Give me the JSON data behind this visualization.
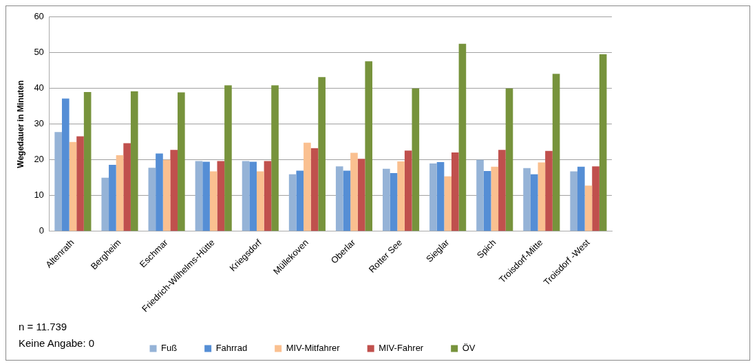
{
  "chart_data": {
    "type": "bar",
    "ylabel": "Wegedauer in Minuten",
    "categories": [
      "Altenrath",
      "Bergheim",
      "Eschmar",
      "Friedrich-Wilhelms-Hütte",
      "Kriegsdorf",
      "Müllekoven",
      "Oberlar",
      "Rotter See",
      "Sieglar",
      "Spich",
      "Troisdorf-Mitte",
      "Troisdorf -West"
    ],
    "series": [
      {
        "name": "Fuß",
        "color": "#95b3d7",
        "values": [
          27.8,
          15,
          17.8,
          19.7,
          19.7,
          16,
          18.2,
          17.5,
          19,
          20,
          17.7,
          16.8
        ]
      },
      {
        "name": "Fahrrad",
        "color": "#558ed5",
        "values": [
          37.2,
          18.6,
          21.8,
          19.5,
          19.5,
          17,
          17,
          16.3,
          19.4,
          16.9,
          16,
          18.1
        ]
      },
      {
        "name": "MIV-Mitfahrer",
        "color": "#fac090",
        "values": [
          25,
          21.3,
          20,
          16.8,
          16.8,
          24.8,
          22,
          19.6,
          15.4,
          18.1,
          19.3,
          12.8
        ]
      },
      {
        "name": "MIV-Fahrer",
        "color": "#c0504d",
        "values": [
          26.6,
          24.7,
          22.8,
          19.7,
          19.7,
          23.3,
          20.3,
          22.6,
          22.1,
          22.8,
          22.5,
          18.2
        ]
      },
      {
        "name": "ÖV",
        "color": "#77933c",
        "values": [
          39,
          39.2,
          38.9,
          40.9,
          40.9,
          43.2,
          47.6,
          40,
          52.5,
          40,
          44.1,
          49.6
        ]
      }
    ],
    "ylim": [
      0,
      60
    ],
    "yticks": [
      0,
      10,
      20,
      30,
      40,
      50,
      60
    ],
    "grid": "y",
    "legend": "bottom",
    "annotations": [
      "n = 11.739",
      "Keine Angabe: 0"
    ]
  }
}
